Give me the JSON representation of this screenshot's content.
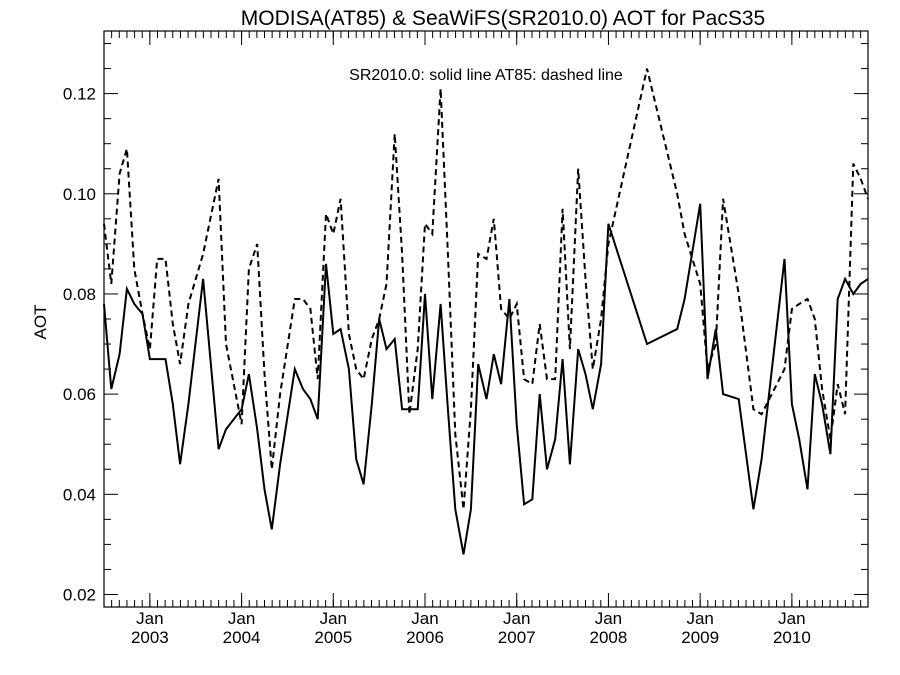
{
  "chart_data": {
    "type": "line",
    "title": "MODISA(AT85) & SeaWiFS(SR2010.0)  AOT for PacS35",
    "annotation": "SR2010.0: solid line   AT85: dashed line",
    "ylabel": "AOT",
    "xlabel": "",
    "x_unit": "decimal year",
    "xlim": [
      2002.5,
      2010.83
    ],
    "ylim": [
      0.0175,
      0.1325
    ],
    "y_ticks": [
      0.02,
      0.04,
      0.06,
      0.08,
      0.1,
      0.12
    ],
    "y_tick_labels": [
      "0.02",
      "0.04",
      "0.06",
      "0.08",
      "0.10",
      "0.12"
    ],
    "x_ticks": [
      {
        "x": 2003.0,
        "month": "Jan",
        "year": "2003"
      },
      {
        "x": 2004.0,
        "month": "Jan",
        "year": "2004"
      },
      {
        "x": 2005.0,
        "month": "Jan",
        "year": "2005"
      },
      {
        "x": 2006.0,
        "month": "Jan",
        "year": "2006"
      },
      {
        "x": 2007.0,
        "month": "Jan",
        "year": "2007"
      },
      {
        "x": 2008.0,
        "month": "Jan",
        "year": "2008"
      },
      {
        "x": 2009.0,
        "month": "Jan",
        "year": "2009"
      },
      {
        "x": 2010.0,
        "month": "Jan",
        "year": "2010"
      }
    ],
    "grid": false,
    "series": [
      {
        "name": "SR2010.0",
        "style": "solid",
        "color": "#000000",
        "x": [
          2002.5,
          2002.58,
          2002.67,
          2002.75,
          2002.83,
          2002.92,
          2003.0,
          2003.08,
          2003.17,
          2003.25,
          2003.33,
          2003.42,
          2003.58,
          2003.75,
          2003.83,
          2004.0,
          2004.08,
          2004.17,
          2004.25,
          2004.33,
          2004.42,
          2004.58,
          2004.67,
          2004.75,
          2004.83,
          2004.92,
          2005.0,
          2005.08,
          2005.17,
          2005.25,
          2005.33,
          2005.42,
          2005.5,
          2005.58,
          2005.67,
          2005.75,
          2005.83,
          2005.92,
          2006.0,
          2006.08,
          2006.17,
          2006.25,
          2006.33,
          2006.42,
          2006.5,
          2006.58,
          2006.67,
          2006.75,
          2006.83,
          2006.92,
          2007.0,
          2007.08,
          2007.17,
          2007.25,
          2007.33,
          2007.42,
          2007.5,
          2007.58,
          2007.67,
          2007.75,
          2007.83,
          2007.92,
          2008.0,
          2008.42,
          2008.75,
          2008.83,
          2009.0,
          2009.08,
          2009.17,
          2009.25,
          2009.42,
          2009.58,
          2009.67,
          2009.92,
          2010.0,
          2010.08,
          2010.17,
          2010.25,
          2010.33,
          2010.42,
          2010.5,
          2010.58,
          2010.67,
          2010.75,
          2010.83
        ],
        "values": [
          0.078,
          0.061,
          0.068,
          0.081,
          0.078,
          0.076,
          0.067,
          0.067,
          0.067,
          0.058,
          0.046,
          0.058,
          0.083,
          0.049,
          0.053,
          0.057,
          0.064,
          0.053,
          0.041,
          0.033,
          0.046,
          0.065,
          0.061,
          0.059,
          0.055,
          0.086,
          0.072,
          0.073,
          0.065,
          0.047,
          0.042,
          0.058,
          0.075,
          0.069,
          0.071,
          0.057,
          0.057,
          0.057,
          0.08,
          0.059,
          0.078,
          0.057,
          0.037,
          0.028,
          0.037,
          0.066,
          0.059,
          0.068,
          0.062,
          0.079,
          0.054,
          0.038,
          0.039,
          0.06,
          0.045,
          0.051,
          0.067,
          0.046,
          0.069,
          0.064,
          0.057,
          0.066,
          0.094,
          0.07,
          0.073,
          0.079,
          0.098,
          0.063,
          0.073,
          0.06,
          0.059,
          0.037,
          0.047,
          0.087,
          0.058,
          0.051,
          0.041,
          0.064,
          0.058,
          0.048,
          0.079,
          0.083,
          0.08,
          0.082,
          0.083
        ]
      },
      {
        "name": "AT85",
        "style": "dashed",
        "color": "#000000",
        "x": [
          2002.5,
          2002.58,
          2002.67,
          2002.75,
          2002.83,
          2002.92,
          2003.0,
          2003.08,
          2003.17,
          2003.25,
          2003.33,
          2003.42,
          2003.58,
          2003.75,
          2003.83,
          2004.0,
          2004.08,
          2004.17,
          2004.25,
          2004.33,
          2004.42,
          2004.58,
          2004.67,
          2004.75,
          2004.83,
          2004.92,
          2005.0,
          2005.08,
          2005.17,
          2005.25,
          2005.33,
          2005.42,
          2005.5,
          2005.58,
          2005.67,
          2005.75,
          2005.83,
          2005.92,
          2006.0,
          2006.08,
          2006.17,
          2006.25,
          2006.33,
          2006.42,
          2006.5,
          2006.58,
          2006.67,
          2006.75,
          2006.83,
          2006.92,
          2007.0,
          2007.08,
          2007.17,
          2007.25,
          2007.33,
          2007.42,
          2007.5,
          2007.58,
          2007.67,
          2007.75,
          2007.83,
          2007.92,
          2008.0,
          2008.42,
          2008.75,
          2008.83,
          2009.0,
          2009.08,
          2009.17,
          2009.25,
          2009.42,
          2009.58,
          2009.67,
          2009.92,
          2010.0,
          2010.08,
          2010.17,
          2010.25,
          2010.33,
          2010.42,
          2010.5,
          2010.58,
          2010.67,
          2010.75,
          2010.83
        ],
        "values": [
          0.094,
          0.082,
          0.104,
          0.109,
          0.085,
          0.076,
          0.069,
          0.087,
          0.087,
          0.074,
          0.066,
          0.078,
          0.088,
          0.103,
          0.07,
          0.054,
          0.085,
          0.09,
          0.064,
          0.045,
          0.06,
          0.079,
          0.079,
          0.077,
          0.063,
          0.096,
          0.092,
          0.099,
          0.072,
          0.065,
          0.063,
          0.071,
          0.075,
          0.082,
          0.112,
          0.088,
          0.056,
          0.069,
          0.094,
          0.092,
          0.121,
          0.088,
          0.052,
          0.037,
          0.057,
          0.088,
          0.087,
          0.095,
          0.077,
          0.075,
          0.078,
          0.063,
          0.062,
          0.074,
          0.063,
          0.063,
          0.097,
          0.069,
          0.105,
          0.083,
          0.065,
          0.075,
          0.09,
          0.125,
          0.1,
          0.092,
          0.082,
          0.065,
          0.07,
          0.099,
          0.08,
          0.057,
          0.056,
          0.065,
          0.077,
          0.078,
          0.079,
          0.075,
          0.061,
          0.051,
          0.062,
          0.056,
          0.106,
          0.103,
          0.099
        ]
      }
    ]
  }
}
